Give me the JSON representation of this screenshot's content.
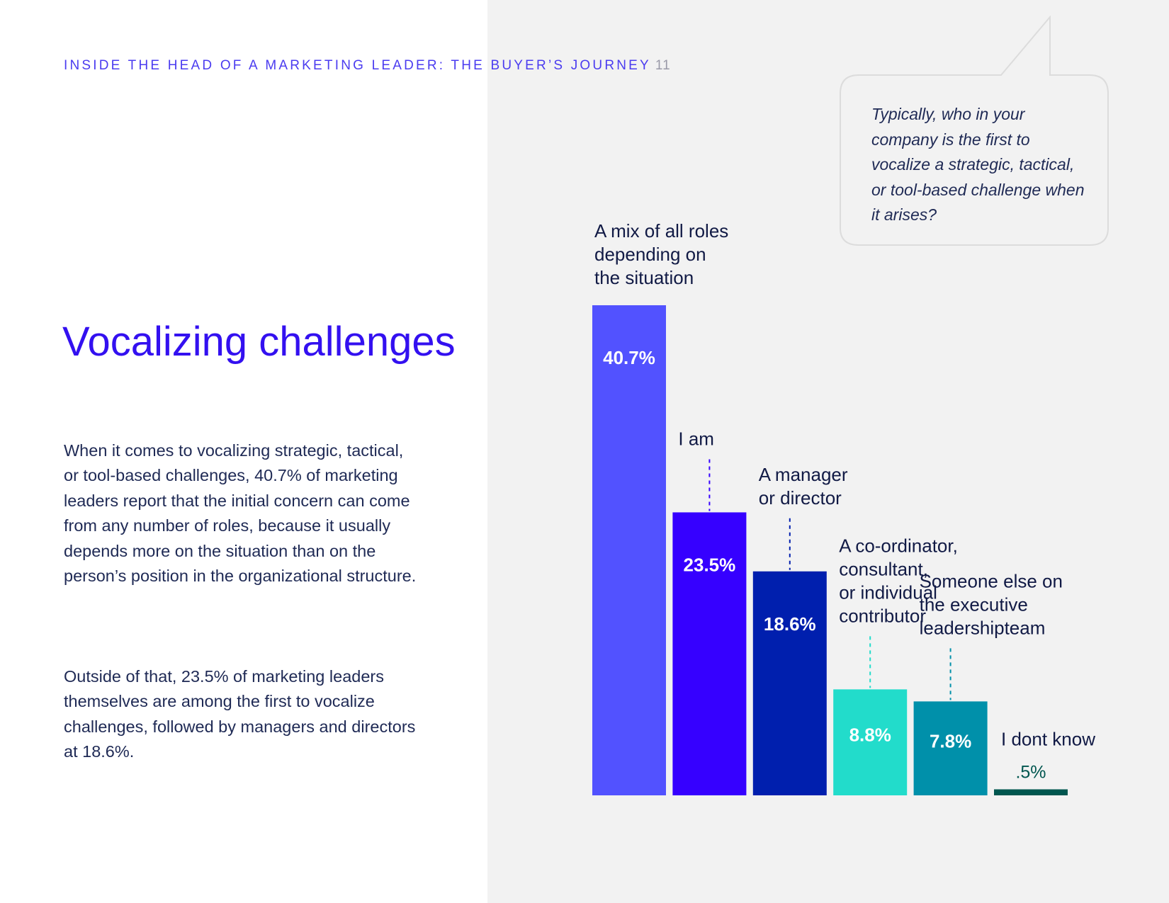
{
  "header": {
    "title": "INSIDE THE HEAD OF A MARKETING LEADER: THE BUYER’S JOURNEY",
    "page_number": "11"
  },
  "headline": "Vocalizing challenges",
  "body": {
    "paragraph1": "When it comes to vocalizing strategic, tactical, or tool-based challenges, 40.7% of marketing leaders report that the initial concern can come from any number of roles, because it usually depends more on the situation than on the person’s position in the organizational structure.",
    "paragraph2": "Outside of that, 23.5% of marketing leaders themselves are among the first to vocalize challenges, followed by managers and directors at 18.6%."
  },
  "question": "Typically, who in your company is the first to vocalize a strategic, tactical, or tool-based challenge when it arises?",
  "colors": {
    "background_left": "#ffffff",
    "background_right": "#f2f2f2",
    "accent": "#3310f0"
  },
  "chart_data": {
    "type": "bar",
    "categories": [
      "A mix of all roles depending on the situation",
      "I am",
      "A manager or director",
      "A co-ordinator, consultant, or individual contributor",
      "Someone else on the executive leadershipteam",
      "I dont know"
    ],
    "category_lines": [
      [
        "A mix of all roles",
        "depending on",
        "the situation"
      ],
      [
        "I am"
      ],
      [
        "A manager",
        "or director"
      ],
      [
        "A co-ordinator,",
        "consultant,",
        "or individual",
        "contributor"
      ],
      [
        "Someone else on",
        "the executive",
        "leadershipteam"
      ],
      [
        "I dont know"
      ]
    ],
    "values": [
      40.7,
      23.5,
      18.6,
      8.8,
      7.8,
      0.5
    ],
    "value_labels": [
      "40.7%",
      "23.5%",
      "18.6%",
      "8.8%",
      "7.8%",
      ".5%"
    ],
    "colors": [
      "#5252ff",
      "#3600ff",
      "#001fae",
      "#22dccb",
      "#0090aa",
      "#00564f"
    ],
    "value_label_colors": [
      "#ffffff",
      "#ffffff",
      "#ffffff",
      "#ffffff",
      "#ffffff",
      "#00564f"
    ],
    "ylim": [
      0,
      40.7
    ],
    "grid": false,
    "legend": "none"
  }
}
